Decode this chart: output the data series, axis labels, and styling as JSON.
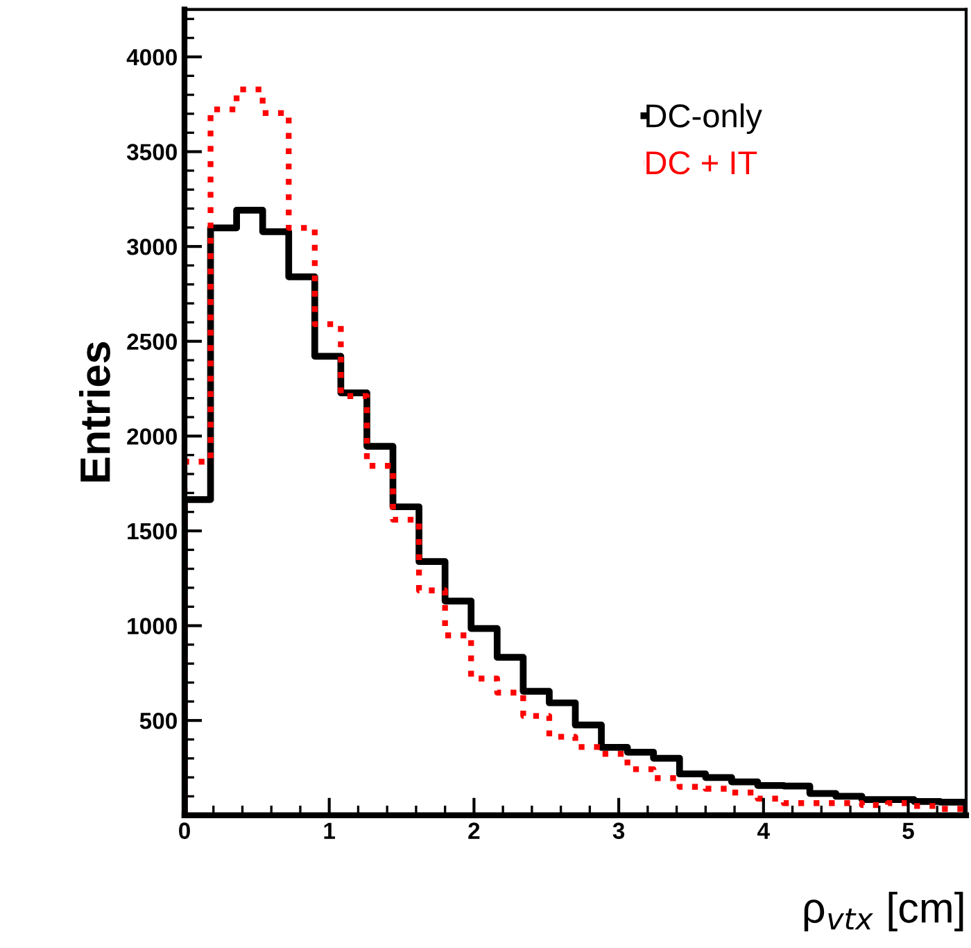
{
  "chart_data": {
    "type": "histogram",
    "xlabel": "ρ$_{vtx}$ [cm]",
    "ylabel": "Entries",
    "bins": [
      0,
      0.18,
      0.36,
      0.54,
      0.72,
      0.9,
      1.08,
      1.26,
      1.44,
      1.62,
      1.8,
      1.98,
      2.16,
      2.34,
      2.52,
      2.7,
      2.88,
      3.06,
      3.24,
      3.42,
      3.6,
      3.78,
      3.96,
      4.14,
      4.32,
      4.5,
      4.68,
      4.86,
      5.04,
      5.22,
      5.4
    ],
    "series": [
      {
        "name": "DC-only",
        "color": "#000000",
        "line_style": "solid",
        "values": [
          1665,
          3098,
          3191,
          3078,
          2840,
          2421,
          2228,
          1946,
          1627,
          1338,
          1130,
          985,
          833,
          654,
          593,
          476,
          358,
          333,
          301,
          218,
          199,
          176,
          157,
          154,
          115,
          100,
          83,
          83,
          73,
          69
        ]
      },
      {
        "name": "DC + IT",
        "color": "#ff0000",
        "line_style": "dotted",
        "values": [
          1865,
          3723,
          3828,
          3704,
          3098,
          2590,
          2211,
          1843,
          1559,
          1186,
          949,
          721,
          647,
          524,
          414,
          360,
          324,
          243,
          196,
          150,
          140,
          120,
          88,
          64,
          64,
          64,
          54,
          64,
          49,
          34
        ]
      }
    ],
    "xlim": [
      0,
      5.4
    ],
    "ylim": [
      0,
      4250
    ],
    "xticks": [
      0,
      1,
      2,
      3,
      4,
      5
    ],
    "yticks": [
      500,
      1000,
      1500,
      2000,
      2500,
      3000,
      3500,
      4000
    ],
    "legend": "top right",
    "grid": false
  }
}
